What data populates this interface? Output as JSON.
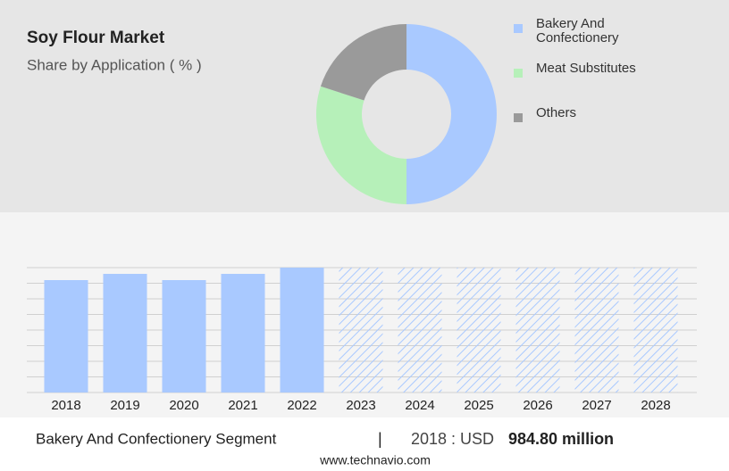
{
  "chart_data": [
    {
      "type": "pie",
      "title": "Soy Flour Market",
      "subtitle": "Share by Application ( % )",
      "categories": [
        "Bakery And Confectionery",
        "Meat Substitutes",
        "Others"
      ],
      "values": [
        50,
        30,
        20
      ],
      "colors": [
        "#a9c9ff",
        "#b6f0b9",
        "#9a9a9a"
      ],
      "donut": true
    },
    {
      "type": "bar",
      "categories": [
        "2018",
        "2019",
        "2020",
        "2021",
        "2022",
        "2023",
        "2024",
        "2025",
        "2026",
        "2027",
        "2028"
      ],
      "values": [
        7.2,
        7.6,
        7.2,
        7.6,
        8,
        null,
        null,
        null,
        null,
        null,
        null
      ],
      "color": "#a9c9ff",
      "ylim": [
        0,
        8
      ],
      "yticks": [
        0,
        1,
        2,
        3,
        4,
        5,
        6,
        7,
        8
      ],
      "grid": true
    }
  ],
  "footer": {
    "segment": "Bakery And Confectionery Segment",
    "separator": "|",
    "year_label": "2018 : USD",
    "value": "984.80 million",
    "source": "www.technavio.com"
  }
}
